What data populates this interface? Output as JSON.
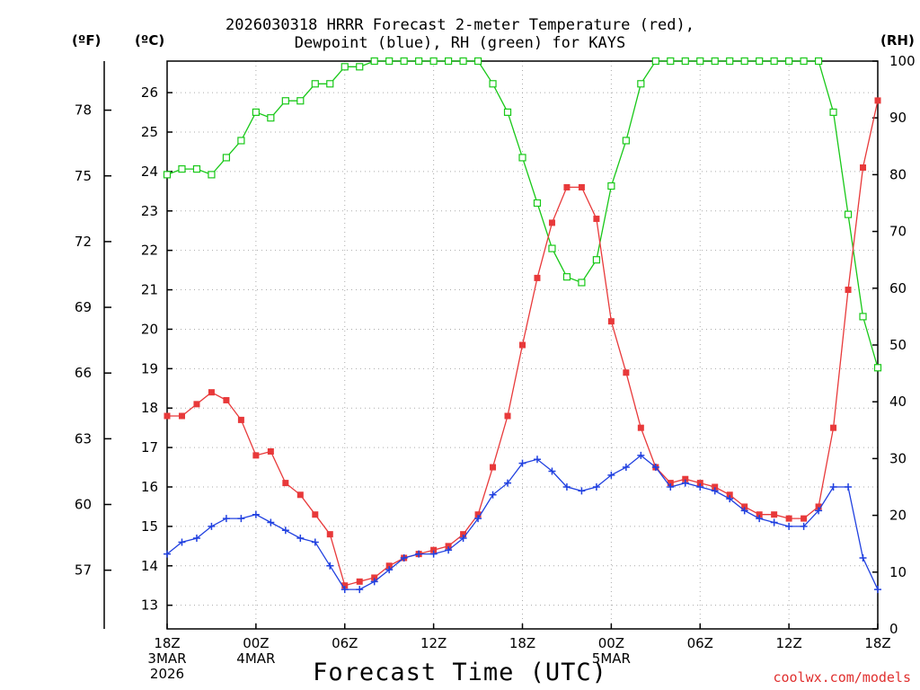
{
  "title_line1": "2026030318 HRRR Forecast 2-meter Temperature (red),",
  "title_line2": "Dewpoint (blue), RH (green) for KAYS",
  "units": {
    "fahrenheit": "(ºF)",
    "celsius": "(ºC)",
    "rh": "(RH)"
  },
  "xlabel": "Forecast Time (UTC)",
  "credit": "coolwx.com/models",
  "colors": {
    "temperature": "#e8393a",
    "dewpoint": "#2040e0",
    "rh": "#18c818",
    "grid": "#aaaaaa"
  },
  "chart_data": {
    "type": "line",
    "title": "2026030318 HRRR Forecast 2-meter Temperature (red), Dewpoint (blue), RH (green) for KAYS",
    "xlabel": "Forecast Time (UTC)",
    "x_hours": [
      0,
      1,
      2,
      3,
      4,
      5,
      6,
      7,
      8,
      9,
      10,
      11,
      12,
      13,
      14,
      15,
      16,
      17,
      18,
      19,
      20,
      21,
      22,
      23,
      24,
      25,
      26,
      27,
      28,
      29,
      30,
      31,
      32,
      33,
      34,
      35,
      36,
      37,
      38,
      39,
      40,
      41,
      42,
      43,
      44,
      45,
      46,
      47,
      48
    ],
    "x_range": [
      0,
      48
    ],
    "x_ticks": [
      {
        "hour": 0,
        "lines": [
          "18Z",
          "3MAR",
          "2026"
        ]
      },
      {
        "hour": 6,
        "lines": [
          "00Z",
          "4MAR"
        ]
      },
      {
        "hour": 12,
        "lines": [
          "06Z"
        ]
      },
      {
        "hour": 18,
        "lines": [
          "12Z"
        ]
      },
      {
        "hour": 24,
        "lines": [
          "18Z"
        ]
      },
      {
        "hour": 30,
        "lines": [
          "00Z",
          "5MAR"
        ]
      },
      {
        "hour": 36,
        "lines": [
          "06Z"
        ]
      },
      {
        "hour": 42,
        "lines": [
          "12Z"
        ]
      },
      {
        "hour": 48,
        "lines": [
          "18Z"
        ]
      }
    ],
    "celsius_axis": {
      "range": [
        12.4,
        26.8
      ],
      "ticks": [
        13,
        14,
        15,
        16,
        17,
        18,
        19,
        20,
        21,
        22,
        23,
        24,
        25,
        26
      ]
    },
    "fahrenheit_ticks": [
      57,
      60,
      63,
      66,
      69,
      72,
      75,
      78
    ],
    "rh_axis": {
      "range": [
        0,
        100
      ],
      "ticks": [
        0,
        10,
        20,
        30,
        40,
        50,
        60,
        70,
        80,
        90,
        100
      ]
    },
    "series": [
      {
        "name": "Temperature",
        "unit": "C",
        "marker": "square",
        "values": [
          17.8,
          17.8,
          18.1,
          18.4,
          18.2,
          17.7,
          16.8,
          16.9,
          16.1,
          15.8,
          15.3,
          14.8,
          13.5,
          13.6,
          13.7,
          14.0,
          14.2,
          14.3,
          14.4,
          14.5,
          14.8,
          15.3,
          16.5,
          17.8,
          19.6,
          21.3,
          22.7,
          23.6,
          23.6,
          22.8,
          20.2,
          18.9,
          17.5,
          16.5,
          16.1,
          16.2,
          16.1,
          16.0,
          15.8,
          15.5,
          15.3,
          15.3,
          15.2,
          15.2,
          15.5,
          17.5,
          21.0,
          24.1,
          25.8
        ]
      },
      {
        "name": "Dewpoint",
        "unit": "C",
        "marker": "plus",
        "values": [
          14.3,
          14.6,
          14.7,
          15.0,
          15.2,
          15.2,
          15.3,
          15.1,
          14.9,
          14.7,
          14.6,
          14.0,
          13.4,
          13.4,
          13.6,
          13.9,
          14.2,
          14.3,
          14.3,
          14.4,
          14.7,
          15.2,
          15.8,
          16.1,
          16.6,
          16.7,
          16.4,
          16.0,
          15.9,
          16.0,
          16.3,
          16.5,
          16.8,
          16.5,
          16.0,
          16.1,
          16.0,
          15.9,
          15.7,
          15.4,
          15.2,
          15.1,
          15.0,
          15.0,
          15.4,
          16.0,
          16.0,
          14.2,
          13.4
        ]
      },
      {
        "name": "RH",
        "unit": "%",
        "marker": "open-square",
        "values": [
          80,
          81,
          81,
          80,
          83,
          86,
          91,
          90,
          93,
          93,
          96,
          96,
          99,
          99,
          100,
          100,
          100,
          100,
          100,
          100,
          100,
          100,
          96,
          91,
          83,
          75,
          67,
          62,
          61,
          65,
          78,
          86,
          96,
          100,
          100,
          100,
          100,
          100,
          100,
          100,
          100,
          100,
          100,
          100,
          100,
          91,
          73,
          55,
          46
        ]
      }
    ]
  }
}
